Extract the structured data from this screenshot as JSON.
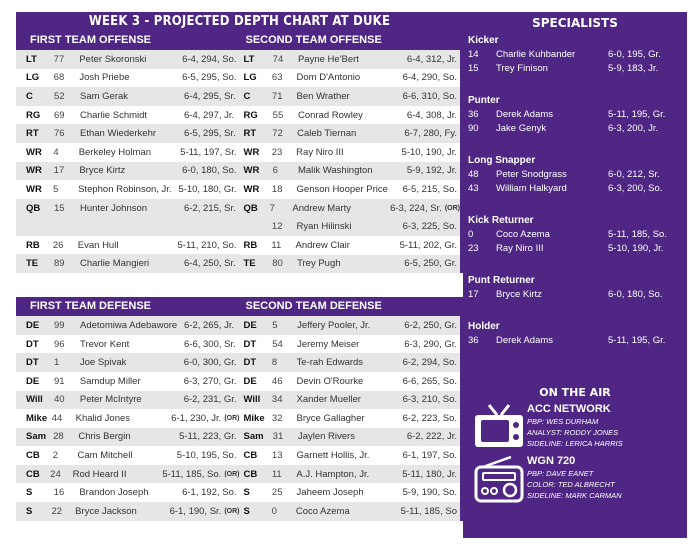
{
  "header": {
    "title": "WEEK 3 - PROJECTED DEPTH CHART AT DUKE"
  },
  "offense": {
    "first_label": "FIRST TEAM OFFENSE",
    "second_label": "SECOND TEAM OFFENSE",
    "first": [
      {
        "pos": "LT",
        "num": "77",
        "name": "Peter Skoronski",
        "info": "6-4, 294, So.",
        "or": ""
      },
      {
        "pos": "LG",
        "num": "68",
        "name": "Josh Priebe",
        "info": "6-5, 295, So.",
        "or": ""
      },
      {
        "pos": "C",
        "num": "52",
        "name": "Sam Gerak",
        "info": "6-4, 295, Sr.",
        "or": ""
      },
      {
        "pos": "RG",
        "num": "69",
        "name": "Charlie Schmidt",
        "info": "6-4, 297, Jr.",
        "or": ""
      },
      {
        "pos": "RT",
        "num": "76",
        "name": "Ethan Wiederkehr",
        "info": "6-5, 295, Sr.",
        "or": ""
      },
      {
        "pos": "WR",
        "num": "4",
        "name": "Berkeley Holman",
        "info": "5-11, 197, Sr.",
        "or": ""
      },
      {
        "pos": "WR",
        "num": "17",
        "name": "Bryce Kirtz",
        "info": "6-0, 180, So.",
        "or": ""
      },
      {
        "pos": "WR",
        "num": "5",
        "name": "Stephon Robinson, Jr.",
        "info": "5-10, 180, Gr.",
        "or": ""
      },
      {
        "pos": "QB",
        "num": "15",
        "name": "Hunter Johnson",
        "info": "6-2, 215, Sr.",
        "or": ""
      },
      {
        "pos": "RB",
        "num": "26",
        "name": "Evan Hull",
        "info": "5-11, 210, So.",
        "or": ""
      },
      {
        "pos": "TE",
        "num": "89",
        "name": "Charlie Mangieri",
        "info": "6-4, 250, Sr.",
        "or": ""
      }
    ],
    "second": [
      {
        "pos": "LT",
        "num": "74",
        "name": "Payne He'Bert",
        "info": "6-4, 312, Jr.",
        "or": ""
      },
      {
        "pos": "LG",
        "num": "63",
        "name": "Dom D'Antonio",
        "info": "6-4, 290, So.",
        "or": ""
      },
      {
        "pos": "C",
        "num": "71",
        "name": "Ben Wrather",
        "info": "6-6, 310, So.",
        "or": ""
      },
      {
        "pos": "RG",
        "num": "55",
        "name": "Conrad Rowley",
        "info": "6-4, 308, Jr.",
        "or": ""
      },
      {
        "pos": "RT",
        "num": "72",
        "name": "Caleb Tiernan",
        "info": "6-7, 280, Fy.",
        "or": ""
      },
      {
        "pos": "WR",
        "num": "23",
        "name": "Ray Niro III",
        "info": "5-10, 190, Jr.",
        "or": ""
      },
      {
        "pos": "WR",
        "num": "6",
        "name": "Malik Washington",
        "info": "5-9, 192, Jr.",
        "or": ""
      },
      {
        "pos": "WR",
        "num": "18",
        "name": "Genson Hooper Price",
        "info": "6-5, 215, So.",
        "or": ""
      },
      {
        "pos": "QB",
        "num": "7",
        "name": "Andrew Marty",
        "info": "6-3, 224, Sr.",
        "or": "(OR)"
      },
      {
        "pos": "",
        "num": "12",
        "name": "Ryan Hilinski",
        "info": "6-3, 225, So.",
        "or": ""
      },
      {
        "pos": "RB",
        "num": "11",
        "name": "Andrew Clair",
        "info": "5-11, 202, Gr.",
        "or": ""
      },
      {
        "pos": "TE",
        "num": "80",
        "name": "Trey Pugh",
        "info": "6-5, 250, Gr.",
        "or": ""
      }
    ]
  },
  "defense": {
    "first_label": "FIRST TEAM DEFENSE",
    "second_label": "SECOND TEAM DEFENSE",
    "first": [
      {
        "pos": "DE",
        "num": "99",
        "name": "Adetomiwa Adebawore",
        "info": "6-2, 265, Jr.",
        "or": ""
      },
      {
        "pos": "DT",
        "num": "96",
        "name": "Trevor Kent",
        "info": "6-6, 300, Sr.",
        "or": ""
      },
      {
        "pos": "DT",
        "num": "1",
        "name": "Joe Spivak",
        "info": "6-0, 300, Gr.",
        "or": ""
      },
      {
        "pos": "DE",
        "num": "91",
        "name": "Samdup Miller",
        "info": "6-3, 270, Gr.",
        "or": ""
      },
      {
        "pos": "Will",
        "num": "40",
        "name": "Peter McIntyre",
        "info": "6-2, 231, Gr.",
        "or": ""
      },
      {
        "pos": "Mike",
        "num": "44",
        "name": "Khalid Jones",
        "info": "6-1, 230, Jr.",
        "or": "(OR)"
      },
      {
        "pos": "Sam",
        "num": "28",
        "name": "Chris Bergin",
        "info": "5-11, 223, Gr.",
        "or": ""
      },
      {
        "pos": "CB",
        "num": "2",
        "name": "Cam Mitchell",
        "info": "5-10, 195, So.",
        "or": ""
      },
      {
        "pos": "CB",
        "num": "24",
        "name": "Rod Heard II",
        "info": "5-11, 185, So.",
        "or": "(OR)"
      },
      {
        "pos": "S",
        "num": "16",
        "name": "Brandon Joseph",
        "info": "6-1, 192, So.",
        "or": ""
      },
      {
        "pos": "S",
        "num": "22",
        "name": "Bryce Jackson",
        "info": "6-1, 190, Sr.",
        "or": "(OR)"
      }
    ],
    "second": [
      {
        "pos": "DE",
        "num": "5",
        "name": "Jeffery Pooler, Jr.",
        "info": "6-2, 250, Gr.",
        "or": ""
      },
      {
        "pos": "DT",
        "num": "54",
        "name": "Jeremy Meiser",
        "info": "6-3, 290, Gr.",
        "or": ""
      },
      {
        "pos": "DT",
        "num": "8",
        "name": "Te-rah Edwards",
        "info": "6-2, 294, So.",
        "or": ""
      },
      {
        "pos": "DE",
        "num": "46",
        "name": "Devin O'Rourke",
        "info": "6-6, 265, So.",
        "or": ""
      },
      {
        "pos": "Will",
        "num": "34",
        "name": "Xander Mueller",
        "info": "6-3, 210, So.",
        "or": ""
      },
      {
        "pos": "Mike",
        "num": "32",
        "name": "Bryce Gallagher",
        "info": "6-2, 223, So.",
        "or": ""
      },
      {
        "pos": "Sam",
        "num": "31",
        "name": "Jaylen Rivers",
        "info": "6-2, 222, Jr.",
        "or": ""
      },
      {
        "pos": "CB",
        "num": "13",
        "name": "Garnett Hollis, Jr.",
        "info": "6-1, 197, So.",
        "or": ""
      },
      {
        "pos": "CB",
        "num": "11",
        "name": "A.J. Hampton, Jr.",
        "info": "5-11, 180, Jr.",
        "or": ""
      },
      {
        "pos": "S",
        "num": "25",
        "name": "Jaheem Joseph",
        "info": "5-9, 190, So.",
        "or": ""
      },
      {
        "pos": "S",
        "num": "0",
        "name": "Coco Azema",
        "info": "5-11, 185, So",
        "or": ""
      }
    ]
  },
  "specialists": {
    "title": "SPECIALISTS",
    "groups": [
      {
        "label": "Kicker",
        "players": [
          {
            "num": "14",
            "name": "Charlie Kuhbander",
            "info": "6-0, 195, Gr."
          },
          {
            "num": "15",
            "name": "Trey Finison",
            "info": "5-9, 183, Jr."
          }
        ]
      },
      {
        "label": "Punter",
        "players": [
          {
            "num": "36",
            "name": "Derek Adams",
            "info": "5-11, 195, Gr."
          },
          {
            "num": "90",
            "name": "Jake Genyk",
            "info": "6-3, 200, Jr."
          }
        ]
      },
      {
        "label": "Long Snapper",
        "players": [
          {
            "num": "48",
            "name": "Peter Snodgrass",
            "info": "6-0, 212, Sr."
          },
          {
            "num": "43",
            "name": "William Halkyard",
            "info": "6-3, 200, So."
          }
        ]
      },
      {
        "label": "Kick Returner",
        "players": [
          {
            "num": "0",
            "name": "Coco Azema",
            "info": "5-11, 185, So."
          },
          {
            "num": "23",
            "name": "Ray Niro III",
            "info": "5-10, 190, Jr."
          }
        ]
      },
      {
        "label": "Punt Returner",
        "players": [
          {
            "num": "17",
            "name": "Bryce Kirtz",
            "info": "6-0, 180, So."
          }
        ]
      },
      {
        "label": "Holder",
        "players": [
          {
            "num": "36",
            "name": "Derek Adams",
            "info": "5-11, 195, Gr."
          }
        ]
      }
    ]
  },
  "on_the_air": {
    "title": "ON THE AIR",
    "broadcasts": [
      {
        "icon": "tv-icon",
        "name": "ACC NETWORK",
        "lines": [
          "PBP: Wes Durham",
          "Analyst: Roddy Jones",
          "Sideline: Lerica Harris"
        ]
      },
      {
        "icon": "radio-icon",
        "name": "WGN 720",
        "lines": [
          "PBP: Dave Eanet",
          "Color: Ted Albrecht",
          "Sideline: Mark Carman"
        ]
      }
    ]
  },
  "colors": {
    "purple": "#4f2683",
    "row_alt": "#e6e6e6",
    "white": "#ffffff"
  }
}
